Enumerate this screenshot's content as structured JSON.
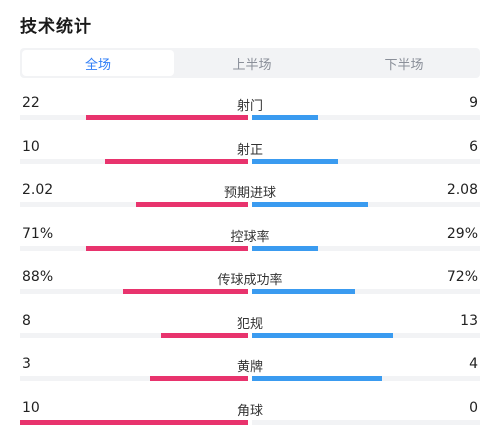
{
  "title": "技术统计",
  "tabs": [
    {
      "label": "全场",
      "active": true
    },
    {
      "label": "上半场",
      "active": false
    },
    {
      "label": "下半场",
      "active": false
    }
  ],
  "colors": {
    "home": "#e8336d",
    "away": "#3a9bf0",
    "accent": "#2f7ef7"
  },
  "stats": [
    {
      "label": "射门",
      "home": "22",
      "away": "9",
      "home_ratio": 0.71,
      "away_ratio": 0.29
    },
    {
      "label": "射正",
      "home": "10",
      "away": "6",
      "home_ratio": 0.625,
      "away_ratio": 0.375
    },
    {
      "label": "预期进球",
      "home": "2.02",
      "away": "2.08",
      "home_ratio": 0.493,
      "away_ratio": 0.507
    },
    {
      "label": "控球率",
      "home": "71%",
      "away": "29%",
      "home_ratio": 0.71,
      "away_ratio": 0.29
    },
    {
      "label": "传球成功率",
      "home": "88%",
      "away": "72%",
      "home_ratio": 0.55,
      "away_ratio": 0.45
    },
    {
      "label": "犯规",
      "home": "8",
      "away": "13",
      "home_ratio": 0.381,
      "away_ratio": 0.619
    },
    {
      "label": "黄牌",
      "home": "3",
      "away": "4",
      "home_ratio": 0.429,
      "away_ratio": 0.571
    },
    {
      "label": "角球",
      "home": "10",
      "away": "0",
      "home_ratio": 1.0,
      "away_ratio": 0.0
    }
  ]
}
